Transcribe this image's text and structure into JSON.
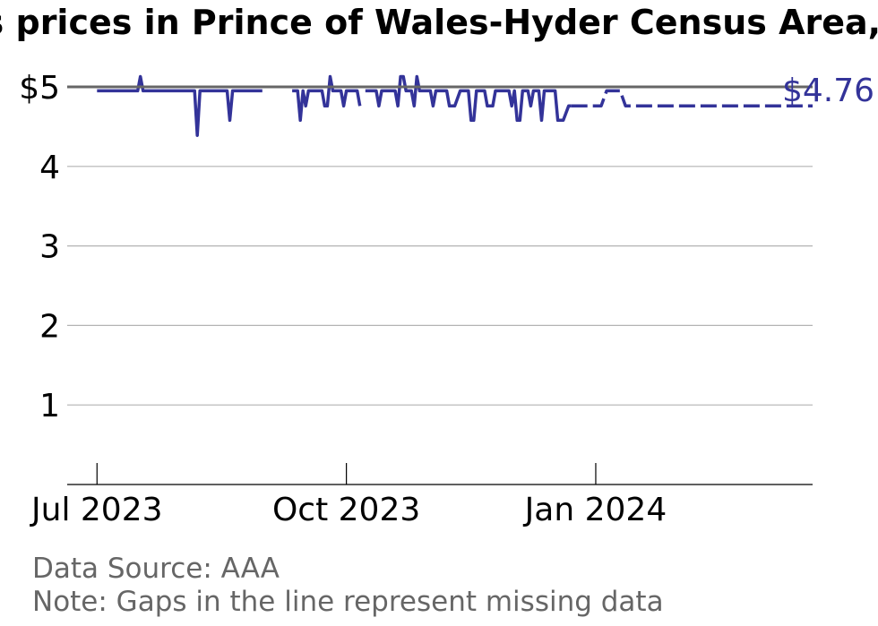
{
  "chart_data": {
    "type": "line",
    "title": "Gas prices in Prince of Wales-Hyder Census Area, AK",
    "y_ticks": [
      {
        "value": 5,
        "label": "$5"
      },
      {
        "value": 4,
        "label": "4"
      },
      {
        "value": 3,
        "label": "3"
      },
      {
        "value": 2,
        "label": "2"
      },
      {
        "value": 1,
        "label": "1"
      }
    ],
    "x_ticks": [
      {
        "date": "2023-07-01",
        "label": "Jul 2023"
      },
      {
        "date": "2023-10-01",
        "label": "Oct 2023"
      },
      {
        "date": "2024-01-01",
        "label": "Jan 2024"
      }
    ],
    "xlim": [
      "2023-06-20",
      "2024-03-21"
    ],
    "ylim": [
      0,
      5
    ],
    "reference_line": 5,
    "grid": "horizontal",
    "end_label": "$4.76",
    "series": [
      {
        "color": "#333399",
        "segments": [
          {
            "style": "solid",
            "points": [
              [
                "2023-07-01",
                4.95
              ],
              [
                "2023-07-16",
                4.95
              ],
              [
                "2023-07-17",
                5.13
              ],
              [
                "2023-07-18",
                4.95
              ],
              [
                "2023-08-06",
                4.95
              ],
              [
                "2023-08-07",
                4.39
              ],
              [
                "2023-08-08",
                4.95
              ],
              [
                "2023-08-18",
                4.95
              ],
              [
                "2023-08-19",
                4.58
              ],
              [
                "2023-08-20",
                4.95
              ],
              [
                "2023-08-31",
                4.95
              ]
            ]
          },
          {
            "style": "solid",
            "points": [
              [
                "2023-09-11",
                4.95
              ],
              [
                "2023-09-13",
                4.95
              ],
              [
                "2023-09-14",
                4.58
              ],
              [
                "2023-09-15",
                4.95
              ],
              [
                "2023-09-16",
                4.76
              ],
              [
                "2023-09-17",
                4.95
              ],
              [
                "2023-09-22",
                4.95
              ],
              [
                "2023-09-23",
                4.76
              ],
              [
                "2023-09-24",
                4.76
              ],
              [
                "2023-09-25",
                5.13
              ],
              [
                "2023-09-26",
                4.95
              ],
              [
                "2023-09-29",
                4.95
              ],
              [
                "2023-09-30",
                4.76
              ],
              [
                "2023-10-01",
                4.95
              ],
              [
                "2023-10-05",
                4.95
              ],
              [
                "2023-10-06",
                4.76
              ]
            ]
          },
          {
            "style": "solid",
            "points": [
              [
                "2023-10-08",
                4.95
              ],
              [
                "2023-10-12",
                4.95
              ],
              [
                "2023-10-13",
                4.76
              ],
              [
                "2023-10-14",
                4.95
              ],
              [
                "2023-10-19",
                4.95
              ],
              [
                "2023-10-20",
                4.76
              ],
              [
                "2023-10-21",
                5.13
              ],
              [
                "2023-10-22",
                5.13
              ],
              [
                "2023-10-23",
                4.95
              ],
              [
                "2023-10-25",
                4.95
              ],
              [
                "2023-10-26",
                4.76
              ],
              [
                "2023-10-27",
                5.13
              ],
              [
                "2023-10-28",
                4.95
              ],
              [
                "2023-11-01",
                4.95
              ],
              [
                "2023-11-02",
                4.76
              ],
              [
                "2023-11-03",
                4.95
              ],
              [
                "2023-11-07",
                4.95
              ],
              [
                "2023-11-08",
                4.76
              ],
              [
                "2023-11-10",
                4.76
              ],
              [
                "2023-11-12",
                4.95
              ],
              [
                "2023-11-15",
                4.95
              ],
              [
                "2023-11-16",
                4.58
              ],
              [
                "2023-11-17",
                4.58
              ],
              [
                "2023-11-18",
                4.95
              ],
              [
                "2023-11-21",
                4.95
              ],
              [
                "2023-11-22",
                4.76
              ],
              [
                "2023-11-24",
                4.76
              ],
              [
                "2023-11-25",
                4.95
              ],
              [
                "2023-11-30",
                4.95
              ],
              [
                "2023-12-01",
                4.76
              ],
              [
                "2023-12-02",
                4.95
              ],
              [
                "2023-12-03",
                4.58
              ],
              [
                "2023-12-04",
                4.58
              ],
              [
                "2023-12-05",
                4.95
              ],
              [
                "2023-12-07",
                4.95
              ],
              [
                "2023-12-08",
                4.76
              ],
              [
                "2023-12-09",
                4.95
              ],
              [
                "2023-12-11",
                4.95
              ],
              [
                "2023-12-12",
                4.58
              ],
              [
                "2023-12-13",
                4.95
              ],
              [
                "2023-12-17",
                4.95
              ],
              [
                "2023-12-18",
                4.58
              ],
              [
                "2023-12-20",
                4.58
              ],
              [
                "2023-12-22",
                4.76
              ],
              [
                "2023-12-23",
                4.76
              ]
            ]
          },
          {
            "style": "dashed",
            "points": [
              [
                "2023-12-23",
                4.76
              ],
              [
                "2024-01-03",
                4.76
              ],
              [
                "2024-01-05",
                4.95
              ],
              [
                "2024-01-10",
                4.95
              ],
              [
                "2024-01-12",
                4.76
              ],
              [
                "2024-03-21",
                4.76
              ]
            ]
          }
        ]
      }
    ]
  },
  "source_note": "Data Source: AAA",
  "gap_note": "Note: Gaps in the line represent missing data"
}
